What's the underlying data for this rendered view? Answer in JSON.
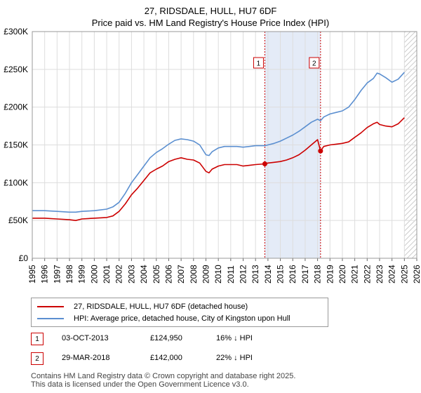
{
  "title_line1": "27, RIDSDALE, HULL, HU7 6DF",
  "title_line2": "Price paid vs. HM Land Registry's House Price Index (HPI)",
  "chart_data": {
    "type": "line",
    "title": "27, RIDSDALE, HULL, HU7 6DF — Price paid vs. HM Land Registry's House Price Index (HPI)",
    "xlabel": "",
    "ylabel": "",
    "xlim": [
      1995,
      2026
    ],
    "ylim": [
      0,
      300000
    ],
    "x_ticks": [
      1995,
      1996,
      1997,
      1998,
      1999,
      2000,
      2001,
      2002,
      2003,
      2004,
      2005,
      2006,
      2007,
      2008,
      2009,
      2010,
      2011,
      2012,
      2013,
      2014,
      2015,
      2016,
      2017,
      2018,
      2019,
      2020,
      2021,
      2022,
      2023,
      2024,
      2025,
      2026
    ],
    "y_ticks": [
      0,
      50000,
      100000,
      150000,
      200000,
      250000,
      300000
    ],
    "y_tick_labels": [
      "£0",
      "£50K",
      "£100K",
      "£150K",
      "£200K",
      "£250K",
      "£300K"
    ],
    "grid": true,
    "shaded_region": [
      2013.75,
      2018.24
    ],
    "projection_hatch_from": 2025.0,
    "series": [
      {
        "name": "27, RIDSDALE, HULL, HU7 6DF (detached house)",
        "color": "#cc0000",
        "x": [
          1995.0,
          1996.0,
          1997.0,
          1998.0,
          1998.5,
          1999.0,
          2000.0,
          2001.0,
          2001.5,
          2002.0,
          2002.5,
          2003.0,
          2003.5,
          2004.0,
          2004.5,
          2005.0,
          2005.5,
          2006.0,
          2006.5,
          2007.0,
          2007.5,
          2008.0,
          2008.5,
          2009.0,
          2009.25,
          2009.5,
          2010.0,
          2010.5,
          2011.0,
          2011.5,
          2012.0,
          2012.5,
          2013.0,
          2013.75,
          2014.0,
          2014.5,
          2015.0,
          2015.5,
          2016.0,
          2016.5,
          2017.0,
          2017.5,
          2018.0,
          2018.24,
          2018.5,
          2019.0,
          2019.5,
          2020.0,
          2020.5,
          2021.0,
          2021.5,
          2022.0,
          2022.5,
          2022.8,
          2023.0,
          2023.5,
          2024.0,
          2024.5,
          2025.0
        ],
        "y": [
          53000,
          53000,
          52000,
          51000,
          50000,
          52000,
          53000,
          54000,
          56000,
          62000,
          72000,
          84000,
          93000,
          103000,
          113000,
          118000,
          122000,
          128000,
          131000,
          133000,
          131000,
          130000,
          126000,
          115000,
          113000,
          118000,
          122000,
          124000,
          124000,
          124000,
          122000,
          123000,
          124000,
          124950,
          126000,
          127000,
          128000,
          130000,
          133000,
          137000,
          143000,
          150000,
          157000,
          142000,
          148000,
          150000,
          151000,
          152000,
          154000,
          160000,
          166000,
          173000,
          178000,
          180000,
          177000,
          175000,
          174000,
          178000,
          186000
        ]
      },
      {
        "name": "HPI: Average price, detached house, City of Kingston upon Hull",
        "color": "#5b8fd0",
        "x": [
          1995.0,
          1996.0,
          1997.0,
          1998.0,
          1998.5,
          1999.0,
          2000.0,
          2001.0,
          2001.5,
          2002.0,
          2002.5,
          2003.0,
          2003.5,
          2004.0,
          2004.5,
          2005.0,
          2005.5,
          2006.0,
          2006.5,
          2007.0,
          2007.5,
          2008.0,
          2008.5,
          2009.0,
          2009.25,
          2009.5,
          2010.0,
          2010.5,
          2011.0,
          2011.5,
          2012.0,
          2012.5,
          2013.0,
          2013.75,
          2014.0,
          2014.5,
          2015.0,
          2015.5,
          2016.0,
          2016.5,
          2017.0,
          2017.5,
          2018.0,
          2018.24,
          2018.5,
          2019.0,
          2019.5,
          2020.0,
          2020.5,
          2021.0,
          2021.5,
          2022.0,
          2022.5,
          2022.8,
          2023.0,
          2023.5,
          2024.0,
          2024.5,
          2025.0
        ],
        "y": [
          63000,
          63000,
          62000,
          61000,
          61000,
          62000,
          63000,
          65000,
          68000,
          74000,
          86000,
          100000,
          111000,
          122000,
          133000,
          140000,
          145000,
          151000,
          156000,
          158000,
          157000,
          155000,
          150000,
          137000,
          136000,
          141000,
          146000,
          148000,
          148000,
          148000,
          147000,
          148000,
          149000,
          149000,
          150000,
          152000,
          155000,
          159000,
          163000,
          168000,
          174000,
          180000,
          184000,
          182000,
          187000,
          191000,
          193000,
          195000,
          200000,
          210000,
          222000,
          232000,
          238000,
          245000,
          244000,
          239000,
          233000,
          237000,
          246000
        ]
      }
    ],
    "annotations": [
      {
        "label": "1",
        "x": 2013.75,
        "y": 124950
      },
      {
        "label": "2",
        "x": 2018.24,
        "y": 142000
      }
    ]
  },
  "legend": {
    "property_label": "27, RIDSDALE, HULL, HU7 6DF (detached house)",
    "hpi_label": "HPI: Average price, detached house, City of Kingston upon Hull",
    "property_color": "#cc0000",
    "hpi_color": "#5b8fd0"
  },
  "transactions": [
    {
      "badge": "1",
      "date": "03-OCT-2013",
      "price": "£124,950",
      "delta": "16% ↓ HPI"
    },
    {
      "badge": "2",
      "date": "29-MAR-2018",
      "price": "£142,000",
      "delta": "22% ↓ HPI"
    }
  ],
  "footer_line1": "Contains HM Land Registry data © Crown copyright and database right 2025.",
  "footer_line2": "This data is licensed under the Open Government Licence v3.0."
}
